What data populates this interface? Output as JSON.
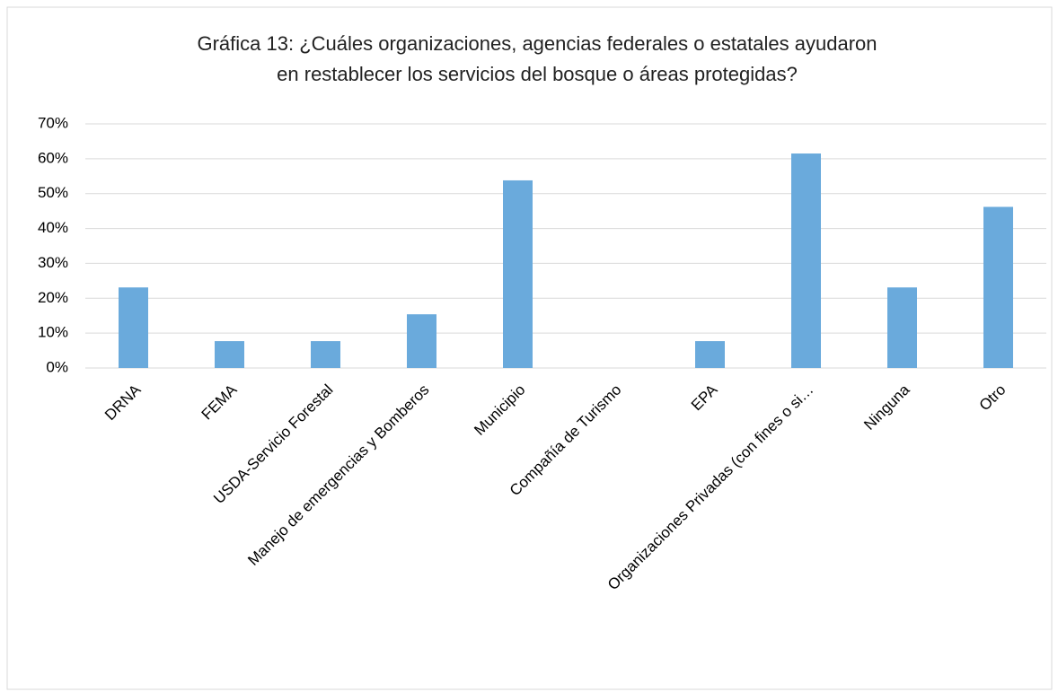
{
  "chart_data": {
    "type": "bar",
    "title": [
      "Gráfica 13: ¿Cuáles organizaciones, agencias federales o estatales ayudaron",
      "en restablecer los servicios del bosque o áreas protegidas?"
    ],
    "categories": [
      "DRNA",
      "FEMA",
      "USDA-Servicio Forestal",
      "Manejo de emergencias y Bomberos",
      "Municipio",
      "Compañía de Turismo",
      "EPA",
      "Organizaciones Privadas (con fines o si…",
      "Ninguna",
      "Otro"
    ],
    "values": [
      23.1,
      7.7,
      7.7,
      15.4,
      53.8,
      0,
      7.7,
      61.5,
      23.1,
      46.2
    ],
    "color": "#6aaadc",
    "ylim": [
      0,
      70
    ],
    "yticks": [
      {
        "value": 0,
        "label": "0%"
      },
      {
        "value": 10,
        "label": "10%"
      },
      {
        "value": 20,
        "label": "20%"
      },
      {
        "value": 30,
        "label": "30%"
      },
      {
        "value": 40,
        "label": "40%"
      },
      {
        "value": 50,
        "label": "50%"
      },
      {
        "value": 60,
        "label": "60%"
      },
      {
        "value": 70,
        "label": "70%"
      }
    ],
    "grid": true
  }
}
